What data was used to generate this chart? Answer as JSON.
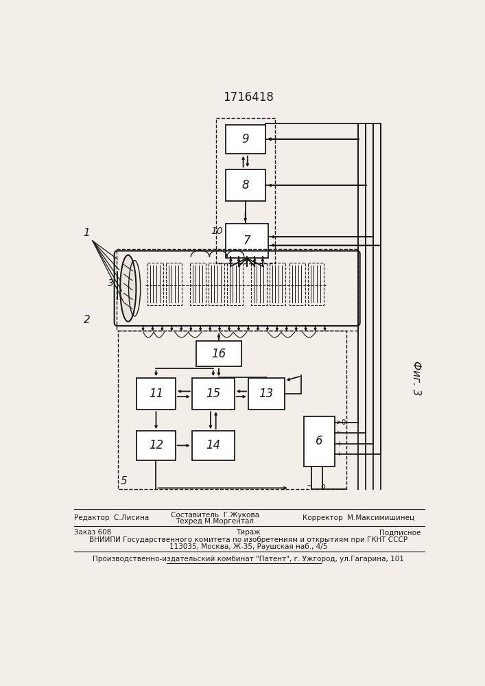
{
  "title": "1716418",
  "fig3_label": "Фиг. 3",
  "bg_color": "#f2efe9",
  "line_color": "#1a1a1a",
  "box_color": "#ffffff",
  "boxes": {
    "b9": [
      310,
      80,
      75,
      55
    ],
    "b8": [
      310,
      165,
      75,
      60
    ],
    "b7": [
      310,
      268,
      80,
      65
    ],
    "b16": [
      255,
      490,
      85,
      48
    ],
    "b11": [
      143,
      560,
      73,
      60
    ],
    "b15": [
      247,
      560,
      80,
      60
    ],
    "b13": [
      353,
      560,
      68,
      60
    ],
    "b12": [
      143,
      660,
      73,
      55
    ],
    "b14": [
      247,
      660,
      80,
      55
    ],
    "b6": [
      457,
      632,
      58,
      95
    ]
  }
}
